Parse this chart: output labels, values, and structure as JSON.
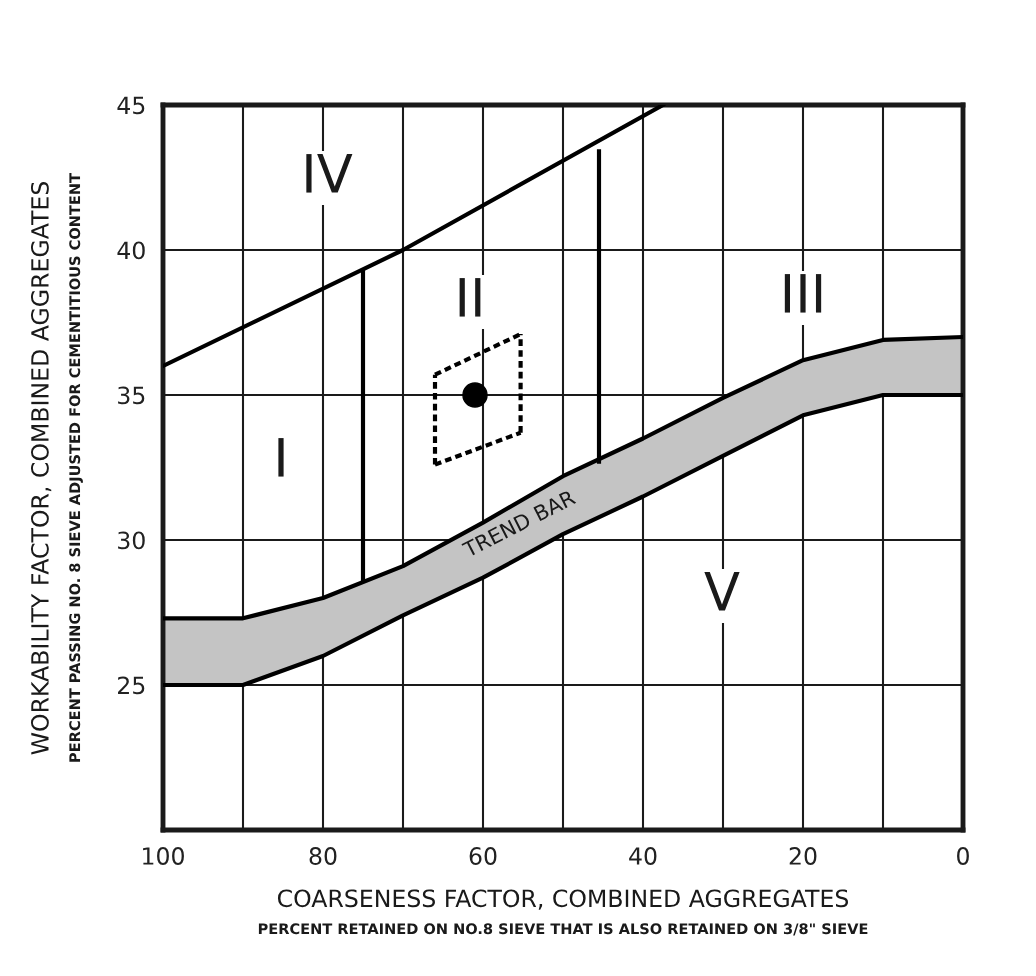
{
  "chart_data": {
    "type": "line",
    "xlabel": "COARSENESS FACTOR, COMBINED AGGREGATES",
    "ylabel": "WORKABILITY FACTOR, COMBINED AGGREGATES",
    "xlim": [
      100,
      0
    ],
    "ylim": [
      20,
      45
    ],
    "xticks": [
      100,
      {
        "value": 90,
        "label": null
      },
      80,
      {
        "value": 70,
        "label": null
      },
      60,
      {
        "value": 50,
        "label": null
      },
      40,
      {
        "value": 30,
        "label": null
      },
      20,
      {
        "value": 10,
        "label": null
      },
      0
    ],
    "yticks": [
      {
        "value": 20,
        "label": null
      },
      25,
      30,
      35,
      40,
      45
    ],
    "grid": true,
    "series": [
      {
        "color": "#000000",
        "x": [
          100,
          70,
          37.5
        ],
        "values": [
          36,
          40,
          45
        ]
      },
      {
        "color": "#000000",
        "x": [
          75,
          75
        ],
        "values": [
          28.6,
          39.3
        ]
      },
      {
        "color": "#000000",
        "x": [
          45.5,
          45.5
        ],
        "values": [
          32.7,
          43.4
        ]
      },
      {
        "color": "#000000",
        "x": [
          100,
          90,
          80,
          70,
          60,
          50,
          40,
          30,
          20,
          10,
          0
        ],
        "values": [
          25,
          25,
          26,
          27.4,
          28.7,
          30.2,
          31.5,
          32.9,
          34.3,
          35,
          35
        ]
      },
      {
        "type": "area",
        "color": "#c4c4c4",
        "x": [
          100,
          90,
          80,
          70,
          60,
          50,
          40,
          30,
          20,
          10,
          0
        ],
        "values": [
          27.3,
          27.3,
          28,
          29.1,
          30.6,
          32.2,
          33.5,
          34.9,
          36.2,
          36.9,
          37
        ]
      },
      {
        "color": "#000000",
        "line_style": "dashed",
        "x": [
          66,
          55.3
        ],
        "values": [
          35.7,
          37.1
        ]
      },
      {
        "color": "#000000",
        "line_style": "dashed",
        "x": [
          55.3,
          55.3
        ],
        "values": [
          33.7,
          37.1
        ]
      },
      {
        "color": "#000000",
        "line_style": "dashed",
        "x": [
          66,
          55.3
        ],
        "values": [
          32.6,
          33.7
        ]
      },
      {
        "color": "#000000",
        "line_style": "dashed",
        "x": [
          66,
          66
        ],
        "values": [
          32.6,
          35.7
        ]
      },
      {
        "type": "scatter",
        "color": "#000000",
        "marker": "circle",
        "x": [
          61
        ],
        "values": [
          35
        ]
      }
    ],
    "annotations": [
      "IV",
      "II",
      "III",
      "I",
      "V",
      "TREND BAR",
      "PERCENT RETAINED ON NO.8 SIEVE THAT IS ALSO RETAINED ON 3/8\" SIEVE",
      "PERCENT PASSING NO. 8 SIEVE ADJUSTED FOR CEMENTITIOUS CONTENT"
    ]
  }
}
